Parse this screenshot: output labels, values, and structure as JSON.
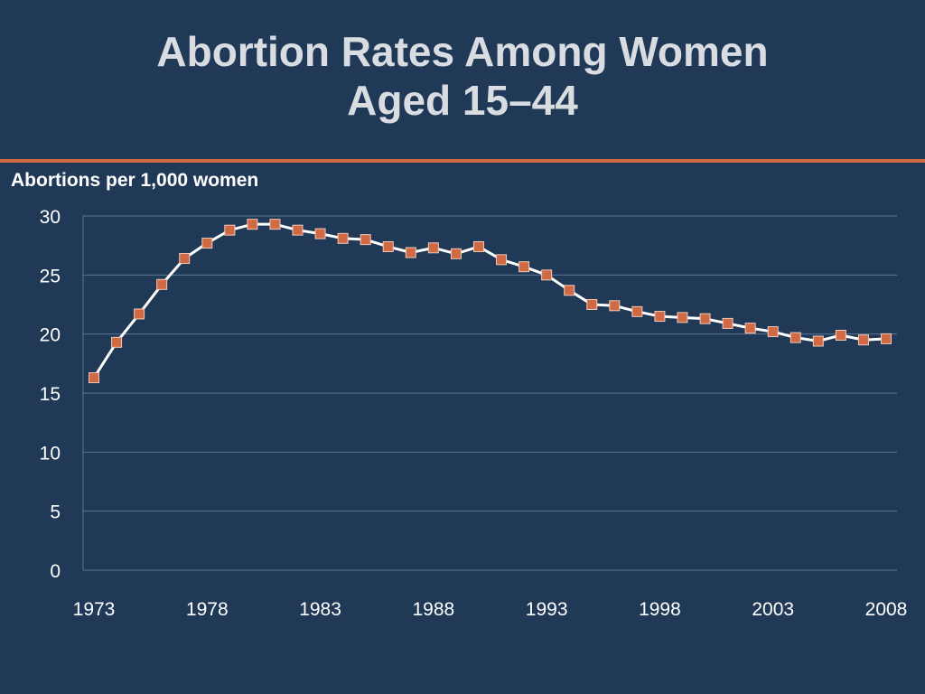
{
  "chart_data": {
    "type": "line",
    "title": "Abortion Rates Among Women Aged 15–44",
    "title_lines": [
      "Abortion Rates Among Women",
      "Aged 15–44"
    ],
    "xlabel": "",
    "ylabel": "Abortions per 1,000 women",
    "ylim": [
      0,
      30
    ],
    "xlim": [
      1973,
      2008
    ],
    "yticks": [
      "0",
      "5",
      "10",
      "15",
      "20",
      "25",
      "30"
    ],
    "xticks": [
      "1973",
      "1978",
      "1983",
      "1988",
      "1993",
      "1998",
      "2003",
      "2008"
    ],
    "grid": true,
    "x": [
      1973,
      1974,
      1975,
      1976,
      1977,
      1978,
      1979,
      1980,
      1981,
      1982,
      1983,
      1984,
      1985,
      1986,
      1987,
      1988,
      1989,
      1990,
      1991,
      1992,
      1993,
      1994,
      1995,
      1996,
      1997,
      1998,
      1999,
      2000,
      2001,
      2002,
      2003,
      2004,
      2005,
      2006,
      2007,
      2008
    ],
    "series": [
      {
        "values": [
          16.3,
          19.3,
          21.7,
          24.2,
          26.4,
          27.7,
          28.8,
          29.3,
          29.3,
          28.8,
          28.5,
          28.1,
          28.0,
          27.4,
          26.9,
          27.3,
          26.8,
          27.4,
          26.3,
          25.7,
          25.0,
          23.7,
          22.5,
          22.4,
          21.9,
          21.5,
          21.4,
          21.3,
          20.9,
          20.5,
          20.2,
          19.7,
          19.4,
          19.9,
          19.5,
          19.6
        ]
      }
    ],
    "colors": {
      "background": "#1f3957",
      "line": "#ffffff",
      "marker": "#d06a45",
      "rule": "#d06a45",
      "grid": "#5d7591",
      "title": "#d9dde2"
    }
  }
}
